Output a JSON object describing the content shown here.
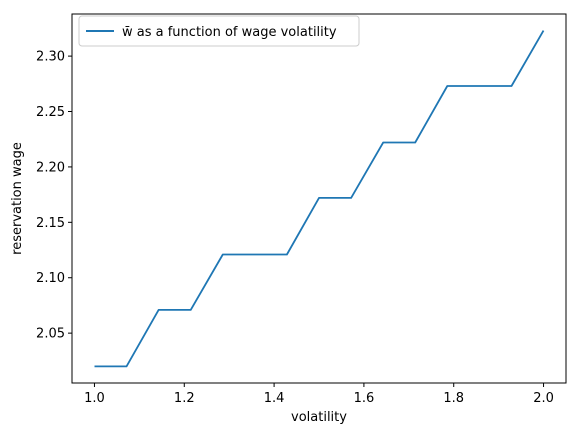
{
  "chart_data": {
    "type": "line",
    "title": "",
    "xlabel": "volatility",
    "ylabel": "reservation wage",
    "xlim": [
      0.95,
      2.05
    ],
    "ylim": [
      2.005,
      2.338
    ],
    "xticks": [
      "1.0",
      "1.2",
      "1.4",
      "1.6",
      "1.8",
      "2.0"
    ],
    "xtick_values": [
      1.0,
      1.2,
      1.4,
      1.6,
      1.8,
      2.0
    ],
    "yticks": [
      "2.05",
      "2.10",
      "2.15",
      "2.20",
      "2.25",
      "2.30"
    ],
    "ytick_values": [
      2.05,
      2.1,
      2.15,
      2.2,
      2.25,
      2.3
    ],
    "grid": false,
    "legend_position": "top-left",
    "series": [
      {
        "name": "w̄ as a function of wage volatility",
        "color": "#1f77b4",
        "x": [
          1.0,
          1.0714,
          1.1429,
          1.2143,
          1.2857,
          1.3571,
          1.4286,
          1.5,
          1.5714,
          1.6429,
          1.7143,
          1.7857,
          1.8571,
          1.9286,
          2.0
        ],
        "y": [
          2.02,
          2.02,
          2.071,
          2.071,
          2.121,
          2.121,
          2.121,
          2.172,
          2.172,
          2.222,
          2.222,
          2.273,
          2.273,
          2.273,
          2.323
        ]
      }
    ]
  }
}
